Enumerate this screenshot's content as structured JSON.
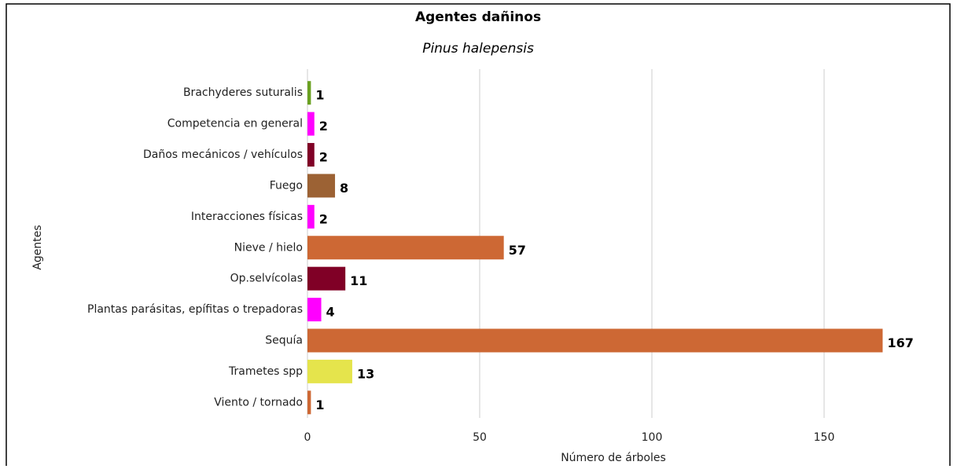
{
  "chart_data": {
    "type": "bar",
    "orientation": "horizontal",
    "title": "Agentes dañinos",
    "subtitle": "Pinus halepensis",
    "x_label": "Número de árboles",
    "y_label": "Agentes",
    "categories": [
      "Brachyderes suturalis",
      "Competencia en general",
      "Daños mecánicos / vehículos",
      "Fuego",
      "Interacciones físicas",
      "Nieve / hielo",
      "Op.selvícolas",
      "Plantas parásitas, epífitas o trepadoras",
      "Sequía",
      "Trametes spp",
      "Viento / tornado"
    ],
    "values": [
      1,
      2,
      2,
      8,
      2,
      57,
      11,
      4,
      167,
      13,
      1
    ],
    "colors": [
      "#6aa121",
      "#ff00ff",
      "#800026",
      "#9c6234",
      "#ff00ff",
      "#cd6834",
      "#800026",
      "#ff00ff",
      "#cd6834",
      "#e5e44c",
      "#cd6834"
    ],
    "xlim": [
      0,
      175
    ],
    "xticks": [
      0,
      50,
      100,
      150
    ],
    "grid": true
  }
}
